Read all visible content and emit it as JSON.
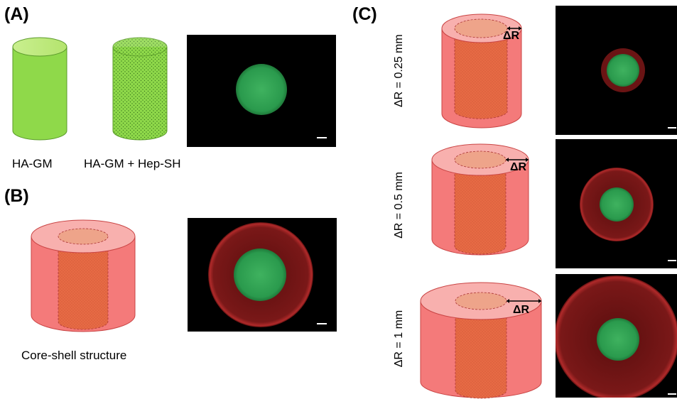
{
  "panels": {
    "a": {
      "letter": "(A)",
      "labels": [
        "HA-GM",
        "HA-GM + Hep-SH"
      ]
    },
    "b": {
      "letter": "(B)",
      "caption": "Core-shell structure"
    },
    "c": {
      "letter": "(C)",
      "rows": [
        {
          "side_label": "ΔR = 0.25 mm",
          "arrow_label": "ΔR"
        },
        {
          "side_label": "ΔR = 0.5 mm",
          "arrow_label": "ΔR"
        },
        {
          "side_label": "ΔR = 1 mm",
          "arrow_label": "ΔR"
        }
      ]
    }
  },
  "colors": {
    "hydrogel_green": "#8fd94a",
    "shell_red": "#f26b6b",
    "core_orange": "#e8613a",
    "fluor_green": "#2f9e4e",
    "fluor_red": "#8a1a1a"
  },
  "icons": [
    "dotted-cylinder-icon",
    "solid-cylinder-icon",
    "core-shell-cylinder-icon"
  ]
}
